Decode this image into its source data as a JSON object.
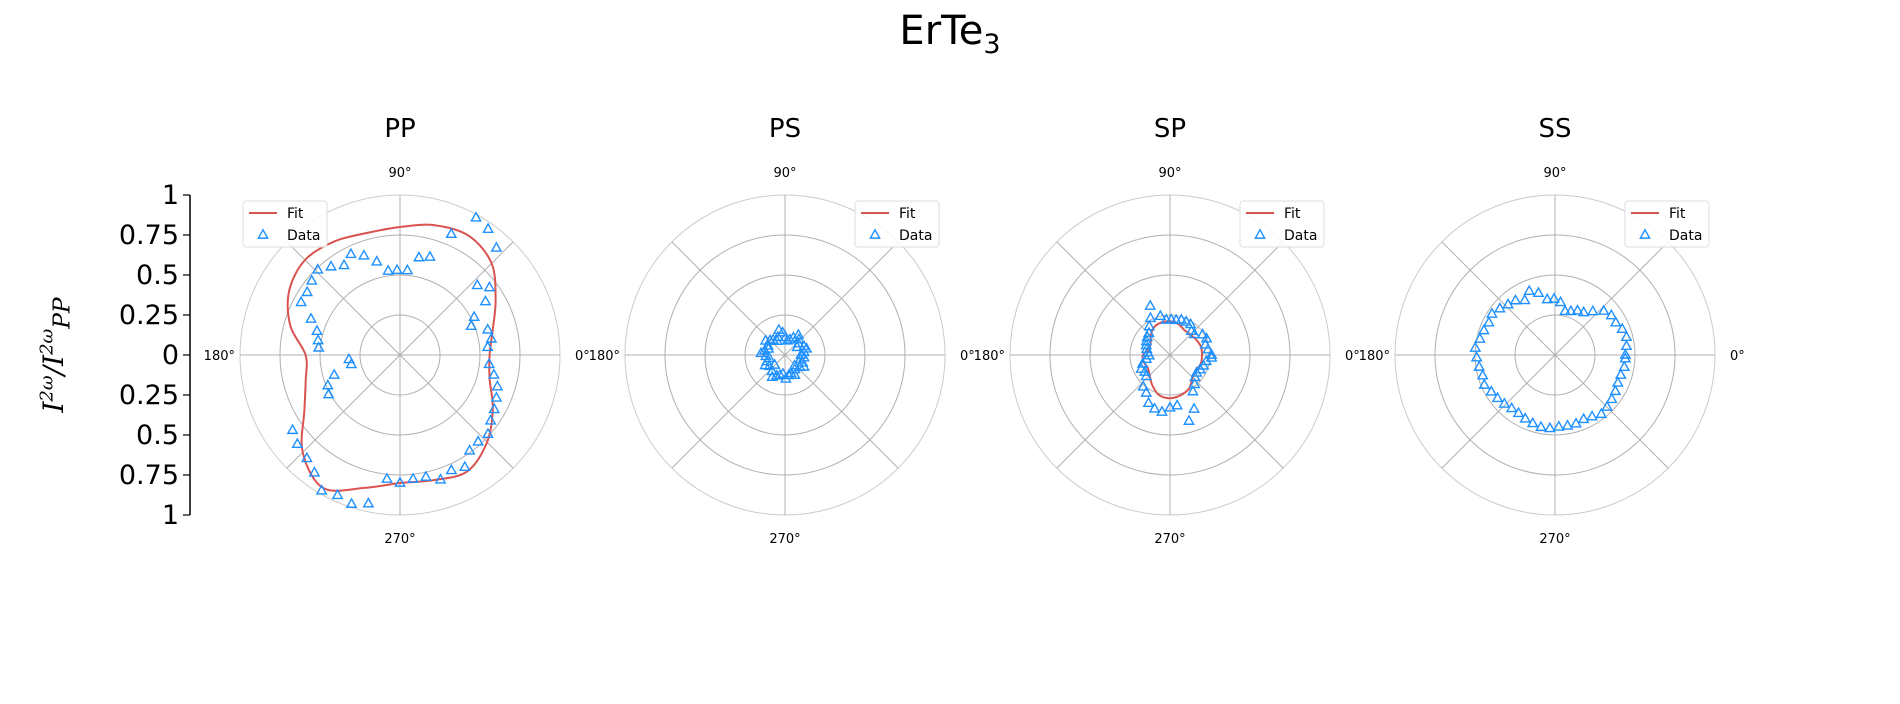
{
  "figure": {
    "title_base": "ErTe",
    "title_sub": "3",
    "ylabel_base": "I",
    "ylabel_sup1": "2ω",
    "ylabel_mid": "/I",
    "ylabel_sup2": "2ω",
    "ylabel_sub2": "PP"
  },
  "colors": {
    "fit": "#d9534f",
    "data": "#1e90ff",
    "grid": "#b0b0b0",
    "spine": "#000000"
  },
  "chart_data": [
    {
      "type": "scatter",
      "title": "PP",
      "projection": "polar",
      "r_scale": "signed, symmetric about 0",
      "ylim": [
        -1,
        1
      ],
      "ytick_labels": [
        "1",
        "0.75",
        "0.5",
        "0.25",
        "0",
        "0.25",
        "0.5",
        "0.75",
        "1"
      ],
      "angle_tick_labels": [
        "0°",
        "90°",
        "180°",
        "270°"
      ],
      "legend": {
        "position": "top-left",
        "entries": [
          "Fit",
          "Data"
        ]
      },
      "series": [
        {
          "name": "Fit",
          "kind": "line",
          "points": [
            [
              0,
              0.56
            ],
            [
              15,
              0.6
            ],
            [
              30,
              0.69
            ],
            [
              45,
              0.81
            ],
            [
              60,
              0.86
            ],
            [
              75,
              0.84
            ],
            [
              90,
              0.8
            ],
            [
              105,
              0.79
            ],
            [
              120,
              0.82
            ],
            [
              135,
              0.84
            ],
            [
              150,
              0.8
            ],
            [
              165,
              0.71
            ],
            [
              180,
              0.59
            ],
            [
              195,
              0.61
            ],
            [
              210,
              0.69
            ],
            [
              225,
              0.86
            ],
            [
              240,
              0.96
            ],
            [
              255,
              0.86
            ],
            [
              270,
              0.8
            ],
            [
              285,
              0.81
            ],
            [
              300,
              0.84
            ],
            [
              315,
              0.77
            ],
            [
              330,
              0.67
            ],
            [
              345,
              0.58
            ]
          ]
        },
        {
          "name": "Data",
          "kind": "scatter",
          "points": [
            [
              5,
              0.55
            ],
            [
              10,
              0.58
            ],
            [
              16,
              0.57
            ],
            [
              22,
              0.48
            ],
            [
              27,
              0.52
            ],
            [
              32,
              0.63
            ],
            [
              37,
              0.7
            ],
            [
              42,
              0.65
            ],
            [
              48,
              0.9
            ],
            [
              55,
              0.96
            ],
            [
              61,
              0.98
            ],
            [
              67,
              0.82
            ],
            [
              73,
              0.64
            ],
            [
              79,
              0.62
            ],
            [
              85,
              0.53
            ],
            [
              92,
              0.53
            ],
            [
              98,
              0.53
            ],
            [
              104,
              0.6
            ],
            [
              110,
              0.66
            ],
            [
              116,
              0.7
            ],
            [
              122,
              0.66
            ],
            [
              128,
              0.7
            ],
            [
              134,
              0.74
            ],
            [
              140,
              0.72
            ],
            [
              146,
              0.7
            ],
            [
              152,
              0.7
            ],
            [
              158,
              0.6
            ],
            [
              164,
              0.54
            ],
            [
              170,
              0.52
            ],
            [
              175,
              0.51
            ],
            [
              185,
              0.32
            ],
            [
              191,
              0.31
            ],
            [
              197,
              0.43
            ],
            [
              203,
              0.49
            ],
            [
              209,
              0.51
            ],
            [
              215,
              0.82
            ],
            [
              221,
              0.85
            ],
            [
              228,
              0.87
            ],
            [
              234,
              0.91
            ],
            [
              240,
              0.98
            ],
            [
              246,
              0.96
            ],
            [
              252,
              0.98
            ],
            [
              258,
              0.95
            ],
            [
              264,
              0.78
            ],
            [
              270,
              0.8
            ],
            [
              276,
              0.78
            ],
            [
              282,
              0.78
            ],
            [
              288,
              0.82
            ],
            [
              294,
              0.79
            ],
            [
              300,
              0.81
            ],
            [
              306,
              0.74
            ],
            [
              312,
              0.73
            ],
            [
              318,
              0.74
            ],
            [
              324,
              0.7
            ],
            [
              330,
              0.68
            ],
            [
              336,
              0.66
            ],
            [
              342,
              0.64
            ],
            [
              348,
              0.6
            ],
            [
              354,
              0.56
            ]
          ]
        }
      ]
    },
    {
      "type": "scatter",
      "title": "PS",
      "projection": "polar",
      "angle_tick_labels": [
        "0°",
        "90°",
        "180°",
        "270°"
      ],
      "legend": {
        "position": "top-right",
        "entries": [
          "Fit",
          "Data"
        ]
      },
      "series": [
        {
          "name": "Fit",
          "kind": "line",
          "points": []
        },
        {
          "name": "Data",
          "kind": "scatter",
          "points": [
            [
              0,
              0.1
            ],
            [
              8,
              0.12
            ],
            [
              16,
              0.14
            ],
            [
              24,
              0.13
            ],
            [
              32,
              0.09
            ],
            [
              40,
              0.11
            ],
            [
              48,
              0.13
            ],
            [
              56,
              0.15
            ],
            [
              64,
              0.12
            ],
            [
              72,
              0.1
            ],
            [
              80,
              0.09
            ],
            [
              88,
              0.11
            ],
            [
              96,
              0.14
            ],
            [
              104,
              0.16
            ],
            [
              112,
              0.12
            ],
            [
              120,
              0.1
            ],
            [
              128,
              0.12
            ],
            [
              136,
              0.13
            ],
            [
              144,
              0.15
            ],
            [
              152,
              0.12
            ],
            [
              160,
              0.11
            ],
            [
              168,
              0.13
            ],
            [
              176,
              0.15
            ],
            [
              184,
              0.12
            ],
            [
              192,
              0.1
            ],
            [
              200,
              0.12
            ],
            [
              208,
              0.14
            ],
            [
              216,
              0.12
            ],
            [
              224,
              0.09
            ],
            [
              232,
              0.13
            ],
            [
              240,
              0.16
            ],
            [
              248,
              0.14
            ],
            [
              256,
              0.13
            ],
            [
              264,
              0.12
            ],
            [
              272,
              0.15
            ],
            [
              280,
              0.13
            ],
            [
              288,
              0.12
            ],
            [
              296,
              0.14
            ],
            [
              304,
              0.11
            ],
            [
              312,
              0.09
            ],
            [
              320,
              0.12
            ],
            [
              328,
              0.14
            ],
            [
              336,
              0.12
            ],
            [
              344,
              0.1
            ],
            [
              352,
              0.12
            ]
          ]
        }
      ]
    },
    {
      "type": "scatter",
      "title": "SP",
      "projection": "polar",
      "angle_tick_labels": [
        "0°",
        "90°",
        "180°",
        "270°"
      ],
      "legend": {
        "position": "top-right",
        "entries": [
          "Fit",
          "Data"
        ]
      },
      "series": [
        {
          "name": "Fit",
          "kind": "line",
          "points": [
            [
              0,
              0.2
            ],
            [
              15,
              0.2
            ],
            [
              30,
              0.19
            ],
            [
              45,
              0.18
            ],
            [
              60,
              0.18
            ],
            [
              75,
              0.2
            ],
            [
              90,
              0.21
            ],
            [
              105,
              0.21
            ],
            [
              120,
              0.2
            ],
            [
              135,
              0.17
            ],
            [
              150,
              0.14
            ],
            [
              165,
              0.14
            ],
            [
              180,
              0.17
            ],
            [
              195,
              0.17
            ],
            [
              210,
              0.16
            ],
            [
              225,
              0.18
            ],
            [
              240,
              0.22
            ],
            [
              255,
              0.26
            ],
            [
              270,
              0.27
            ],
            [
              285,
              0.26
            ],
            [
              300,
              0.24
            ],
            [
              315,
              0.2
            ],
            [
              330,
              0.19
            ],
            [
              345,
              0.2
            ]
          ]
        },
        {
          "name": "Data",
          "kind": "scatter",
          "points": [
            [
              0,
              0.26
            ],
            [
              8,
              0.24
            ],
            [
              16,
              0.23
            ],
            [
              24,
              0.25
            ],
            [
              32,
              0.24
            ],
            [
              40,
              0.2
            ],
            [
              48,
              0.2
            ],
            [
              56,
              0.23
            ],
            [
              64,
              0.23
            ],
            [
              72,
              0.23
            ],
            [
              80,
              0.22
            ],
            [
              88,
              0.22
            ],
            [
              96,
              0.22
            ],
            [
              104,
              0.25
            ],
            [
              112,
              0.33
            ],
            [
              118,
              0.26
            ],
            [
              126,
              0.22
            ],
            [
              134,
              0.19
            ],
            [
              142,
              0.18
            ],
            [
              150,
              0.17
            ],
            [
              158,
              0.16
            ],
            [
              166,
              0.15
            ],
            [
              174,
              0.14
            ],
            [
              182,
              0.13
            ],
            [
              190,
              0.15
            ],
            [
              198,
              0.18
            ],
            [
              206,
              0.2
            ],
            [
              214,
              0.19
            ],
            [
              222,
              0.2
            ],
            [
              230,
              0.26
            ],
            [
              238,
              0.28
            ],
            [
              246,
              0.33
            ],
            [
              254,
              0.35
            ],
            [
              262,
              0.36
            ],
            [
              270,
              0.33
            ],
            [
              278,
              0.32
            ],
            [
              286,
              0.43
            ],
            [
              294,
              0.37
            ],
            [
              302,
              0.27
            ],
            [
              310,
              0.24
            ],
            [
              318,
              0.21
            ],
            [
              326,
              0.2
            ],
            [
              334,
              0.21
            ],
            [
              342,
              0.22
            ],
            [
              350,
              0.23
            ],
            [
              356,
              0.26
            ]
          ]
        }
      ]
    },
    {
      "type": "scatter",
      "title": "SS",
      "projection": "polar",
      "angle_tick_labels": [
        "0°",
        "90°",
        "180°",
        "270°"
      ],
      "legend": {
        "position": "top-right",
        "entries": [
          "Fit",
          "Data"
        ]
      },
      "series": [
        {
          "name": "Fit",
          "kind": "line",
          "points": []
        },
        {
          "name": "Data",
          "kind": "scatter",
          "points": [
            [
              0,
              0.44
            ],
            [
              7,
              0.45
            ],
            [
              14,
              0.46
            ],
            [
              21,
              0.45
            ],
            [
              28,
              0.43
            ],
            [
              35,
              0.43
            ],
            [
              42,
              0.41
            ],
            [
              49,
              0.36
            ],
            [
              56,
              0.32
            ],
            [
              63,
              0.31
            ],
            [
              70,
              0.29
            ],
            [
              77,
              0.28
            ],
            [
              84,
              0.33
            ],
            [
              91,
              0.35
            ],
            [
              98,
              0.35
            ],
            [
              105,
              0.4
            ],
            [
              112,
              0.43
            ],
            [
              119,
              0.39
            ],
            [
              126,
              0.42
            ],
            [
              133,
              0.43
            ],
            [
              140,
              0.45
            ],
            [
              147,
              0.47
            ],
            [
              154,
              0.46
            ],
            [
              161,
              0.47
            ],
            [
              168,
              0.48
            ],
            [
              175,
              0.5
            ],
            [
              182,
              0.49
            ],
            [
              189,
              0.48
            ],
            [
              196,
              0.47
            ],
            [
              203,
              0.48
            ],
            [
              210,
              0.46
            ],
            [
              217,
              0.45
            ],
            [
              224,
              0.44
            ],
            [
              231,
              0.43
            ],
            [
              238,
              0.43
            ],
            [
              245,
              0.44
            ],
            [
              252,
              0.45
            ],
            [
              259,
              0.46
            ],
            [
              266,
              0.46
            ],
            [
              273,
              0.45
            ],
            [
              280,
              0.45
            ],
            [
              287,
              0.45
            ],
            [
              294,
              0.44
            ],
            [
              301,
              0.45
            ],
            [
              308,
              0.47
            ],
            [
              315,
              0.46
            ],
            [
              322,
              0.45
            ],
            [
              329,
              0.44
            ],
            [
              336,
              0.43
            ],
            [
              343,
              0.43
            ],
            [
              350,
              0.44
            ],
            [
              357,
              0.44
            ]
          ]
        }
      ]
    }
  ]
}
